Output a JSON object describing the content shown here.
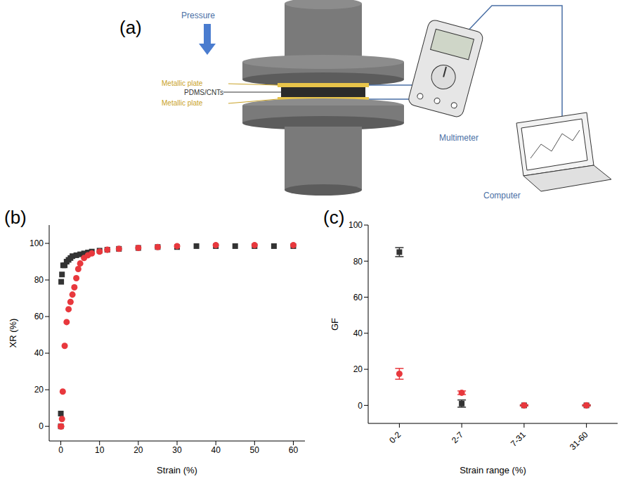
{
  "diagram": {
    "panel": "(a)",
    "pressure": "Pressure",
    "plate_top": "Metallic plate",
    "sample": "PDMS/CNTs",
    "plate_bottom": "Metallic plate",
    "meter": "Multimeter",
    "computer": "Computer"
  },
  "chart_data": [
    {
      "panel": "(b)",
      "type": "scatter",
      "x_label": "Strain (%)",
      "y_label": "XR (%)",
      "xlim": [
        -3,
        63
      ],
      "xticks": [
        0,
        10,
        20,
        30,
        40,
        50,
        60
      ],
      "ylim": [
        -8,
        110
      ],
      "yticks": [
        0,
        20,
        40,
        60,
        80,
        100
      ],
      "series": [
        {
          "color": "#333333",
          "marker": "square",
          "x": [
            0,
            0,
            0.1,
            0.3,
            0.6,
            1,
            1.5,
            2,
            2.5,
            3,
            4,
            5,
            6,
            7,
            8,
            10,
            12,
            15,
            20,
            25,
            30,
            35,
            40,
            45,
            50,
            55,
            60
          ],
          "values": [
            0,
            7,
            79,
            83,
            88,
            88,
            90,
            91,
            92,
            93,
            93.5,
            94,
            94.5,
            95,
            95.5,
            96,
            96.5,
            97,
            97.5,
            98,
            98,
            98.5,
            98.5,
            98.5,
            98.5,
            98.5,
            98.5
          ]
        },
        {
          "color": "#e8383d",
          "marker": "circle",
          "x": [
            0,
            0.1,
            0.3,
            0.5,
            1,
            1.5,
            2,
            2.5,
            3,
            3.5,
            4,
            4.5,
            5,
            6,
            7,
            8,
            10,
            12,
            15,
            20,
            25,
            30,
            40,
            50,
            60
          ],
          "values": [
            0,
            0,
            4,
            19,
            44,
            57,
            64,
            68,
            72,
            76,
            81,
            86,
            89,
            92,
            93.5,
            94.5,
            95.5,
            96.5,
            97,
            97.5,
            98,
            98.5,
            99,
            99,
            99
          ]
        }
      ]
    },
    {
      "panel": "(c)",
      "type": "scatter",
      "x_label": "Strain range (%)",
      "y_label": "GF",
      "categories": [
        "0-2",
        "2-7",
        "7-31",
        "31-60"
      ],
      "ylim": [
        -10,
        100
      ],
      "yticks": [
        0,
        20,
        40,
        60,
        80,
        100
      ],
      "series": [
        {
          "color": "#333333",
          "marker": "square",
          "values": [
            85,
            1,
            0,
            0
          ],
          "errors": [
            2.5,
            2,
            0.3,
            0.3
          ]
        },
        {
          "color": "#e8383d",
          "marker": "circle",
          "values": [
            17.5,
            7,
            0,
            0
          ],
          "errors": [
            3,
            1,
            0.3,
            0.3
          ]
        }
      ]
    }
  ]
}
